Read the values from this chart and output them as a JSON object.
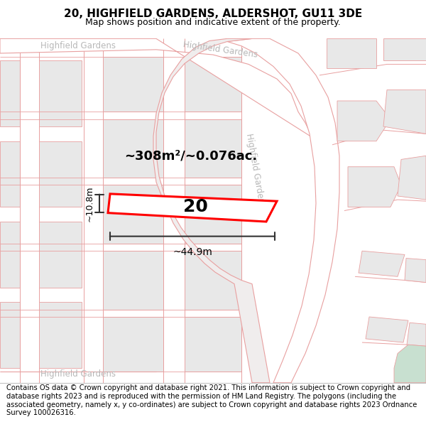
{
  "title": "20, HIGHFIELD GARDENS, ALDERSHOT, GU11 3DE",
  "subtitle": "Map shows position and indicative extent of the property.",
  "footer": "Contains OS data © Crown copyright and database right 2021. This information is subject to Crown copyright and database rights 2023 and is reproduced with the permission of HM Land Registry. The polygons (including the associated geometry, namely x, y co-ordinates) are subject to Crown copyright and database rights 2023 Ordnance Survey 100026316.",
  "area_label": "~308m²/~0.076ac.",
  "width_label": "~44.9m",
  "height_label": "~10.8m",
  "number_label": "20",
  "road_stroke": "#e8a0a0",
  "block_fill": "#e8e8e8",
  "road_fill": "#f5eded",
  "white": "#ffffff",
  "title_fontsize": 11,
  "subtitle_fontsize": 9,
  "footer_fontsize": 7.2
}
